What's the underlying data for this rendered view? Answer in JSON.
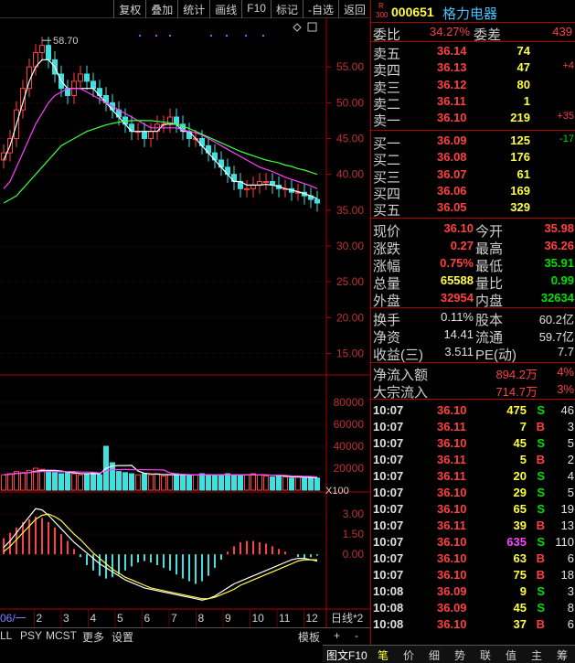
{
  "toolbar": [
    "复权",
    "叠加",
    "统计",
    "画线",
    "F10",
    "标记",
    "-自选",
    "返回"
  ],
  "stock": {
    "code": "000651",
    "name": "格力电器",
    "prefix_top": "R",
    "prefix_bottom": "300"
  },
  "weibi": {
    "label": "委比",
    "value": "34.27%",
    "diff_label": "委差",
    "diff": "439"
  },
  "sell": [
    {
      "label": "卖五",
      "price": "36.14",
      "vol": "74",
      "chg": ""
    },
    {
      "label": "卖四",
      "price": "36.13",
      "vol": "47",
      "chg": "+4"
    },
    {
      "label": "卖三",
      "price": "36.12",
      "vol": "80",
      "chg": ""
    },
    {
      "label": "卖二",
      "price": "36.11",
      "vol": "1",
      "chg": ""
    },
    {
      "label": "卖一",
      "price": "36.10",
      "vol": "219",
      "chg": "+35"
    }
  ],
  "buy": [
    {
      "label": "买一",
      "price": "36.09",
      "vol": "125",
      "chg": "-17"
    },
    {
      "label": "买二",
      "price": "36.08",
      "vol": "176",
      "chg": ""
    },
    {
      "label": "买三",
      "price": "36.07",
      "vol": "61",
      "chg": ""
    },
    {
      "label": "买四",
      "price": "36.06",
      "vol": "169",
      "chg": ""
    },
    {
      "label": "买五",
      "price": "36.05",
      "vol": "329",
      "chg": ""
    }
  ],
  "quote": [
    {
      "l1": "现价",
      "v1": "36.10",
      "l2": "今开",
      "v2": "35.98"
    },
    {
      "l1": "涨跌",
      "v1": "0.27",
      "l2": "最高",
      "v2": "36.26"
    },
    {
      "l1": "涨幅",
      "v1": "0.75%",
      "l2": "最低",
      "v2": "35.91"
    },
    {
      "l1": "总量",
      "v1": "65588",
      "l2": "量比",
      "v2": "0.99"
    },
    {
      "l1": "外盘",
      "v1": "32954",
      "l2": "内盘",
      "v2": "32634"
    }
  ],
  "fund": [
    {
      "l1": "换手",
      "v1": "0.11%",
      "l2": "股本",
      "v2": "60.2亿"
    },
    {
      "l1": "净资",
      "v1": "14.41",
      "l2": "流通",
      "v2": "59.7亿"
    },
    {
      "l1": "收益(三)",
      "v1": "3.511",
      "l2": "PE(动)",
      "v2": "7.7"
    }
  ],
  "flow": [
    {
      "label": "净流入额",
      "value": "894.2万",
      "pct": "4%"
    },
    {
      "label": "大宗流入",
      "value": "714.7万",
      "pct": "3%"
    }
  ],
  "ticks": [
    {
      "t": "10:07",
      "p": "36.10",
      "v": "475",
      "bs": "S",
      "n": "46"
    },
    {
      "t": "10:07",
      "p": "36.11",
      "v": "7",
      "bs": "B",
      "n": "3"
    },
    {
      "t": "10:07",
      "p": "36.10",
      "v": "45",
      "bs": "S",
      "n": "5"
    },
    {
      "t": "10:07",
      "p": "36.11",
      "v": "5",
      "bs": "B",
      "n": "2"
    },
    {
      "t": "10:07",
      "p": "36.11",
      "v": "20",
      "bs": "S",
      "n": "4"
    },
    {
      "t": "10:07",
      "p": "36.10",
      "v": "29",
      "bs": "S",
      "n": "5"
    },
    {
      "t": "10:07",
      "p": "36.10",
      "v": "65",
      "bs": "S",
      "n": "19"
    },
    {
      "t": "10:07",
      "p": "36.11",
      "v": "39",
      "bs": "B",
      "n": "13"
    },
    {
      "t": "10:07",
      "p": "36.10",
      "v": "635",
      "bs": "S",
      "n": "110"
    },
    {
      "t": "10:07",
      "p": "36.10",
      "v": "63",
      "bs": "B",
      "n": "6"
    },
    {
      "t": "10:07",
      "p": "36.10",
      "v": "75",
      "bs": "B",
      "n": "18"
    },
    {
      "t": "10:08",
      "p": "36.09",
      "v": "9",
      "bs": "S",
      "n": "3"
    },
    {
      "t": "10:08",
      "p": "36.09",
      "v": "45",
      "bs": "S",
      "n": "8"
    },
    {
      "t": "10:08",
      "p": "36.10",
      "v": "37",
      "bs": "B",
      "n": "6"
    }
  ],
  "bottom_tabs": [
    "LL",
    "PSY",
    "MCST",
    "更多",
    "设置"
  ],
  "bottom_right": {
    "template": "模板",
    "plus": "+",
    "minus": "-"
  },
  "right_tabs": [
    "图文F10",
    "笔",
    "价",
    "细",
    "势",
    "联",
    "值",
    "主",
    "筹"
  ],
  "chart_data": {
    "type": "candlestick",
    "price_axis": [
      "55.00",
      "50.00",
      "45.00",
      "40.00",
      "35.00",
      "30.00",
      "25.00",
      "20.00",
      "15.00"
    ],
    "price_ticks": [
      55,
      50,
      45,
      40,
      35,
      30,
      25,
      20,
      15
    ],
    "high_label": "58.70",
    "volume_axis": [
      "80000",
      "60000",
      "40000",
      "20000"
    ],
    "volume_ticks": [
      80000,
      60000,
      40000,
      20000
    ],
    "volume_unit": "X100",
    "macd_axis": [
      "3.00",
      "1.50",
      "0.00"
    ],
    "macd_ticks": [
      3,
      1.5,
      0
    ],
    "months": [
      "06/一",
      "2",
      "3",
      "4",
      "5",
      "6",
      "7",
      "8",
      "9",
      "10",
      "11",
      "12"
    ],
    "x_period": "日线*2",
    "close": [
      43,
      45,
      49,
      52,
      55,
      57,
      58,
      56,
      54,
      52,
      51,
      53,
      54,
      53,
      52,
      51,
      50,
      49,
      48,
      47,
      46,
      46,
      45,
      46,
      47,
      47,
      48,
      47,
      46,
      45,
      45,
      44,
      43,
      42,
      41,
      40,
      39,
      38,
      38,
      38.5,
      39,
      39,
      38.5,
      38,
      38,
      37.5,
      37.5,
      37,
      36.5,
      36
    ],
    "ma5": [
      42,
      44,
      47,
      50,
      53,
      55,
      56,
      56,
      55,
      53,
      52,
      52,
      52,
      52,
      52,
      51,
      50,
      49,
      48,
      47,
      46,
      46,
      46,
      46,
      46,
      47,
      47,
      47,
      46,
      46,
      45,
      44,
      43,
      42,
      41,
      40,
      39,
      39,
      38.5,
      38.5,
      38.5,
      38.6,
      38.5,
      38.3,
      38,
      37.8,
      37.6,
      37.3,
      37,
      36.6
    ],
    "ma20": [
      38,
      39,
      41,
      43,
      45,
      47,
      48.5,
      50,
      51,
      51.5,
      52,
      52,
      52,
      51.5,
      51,
      50.5,
      50,
      49.5,
      49,
      48.5,
      48,
      47.5,
      47,
      46.5,
      46.5,
      46.5,
      46.5,
      46.5,
      46.2,
      46,
      45.8,
      45.5,
      45,
      44.5,
      44,
      43.5,
      43,
      42.5,
      42,
      41.5,
      41,
      40.7,
      40.4,
      40,
      39.6,
      39.3,
      39,
      38.7,
      38.4,
      38
    ],
    "ma60": [
      36,
      36.5,
      37,
      38,
      39,
      40,
      41,
      42,
      43,
      44,
      44.5,
      45,
      45.5,
      46,
      46.3,
      46.6,
      46.9,
      47.1,
      47.3,
      47.4,
      47.5,
      47.5,
      47.5,
      47.5,
      47.4,
      47.3,
      47.2,
      47,
      46.7,
      46.4,
      46,
      45.6,
      45.2,
      44.8,
      44.4,
      44,
      43.6,
      43.2,
      42.9,
      42.6,
      42.3,
      42,
      41.8,
      41.6,
      41.3,
      41.1,
      40.8,
      40.6,
      40.3,
      40
    ],
    "volume": [
      14000,
      15000,
      17000,
      16000,
      18000,
      20000,
      19000,
      17000,
      16000,
      15000,
      16000,
      15000,
      14000,
      15000,
      16000,
      14000,
      40000,
      25000,
      17000,
      16000,
      15000,
      14000,
      15000,
      14000,
      15000,
      13000,
      14000,
      15000,
      14000,
      13000,
      14000,
      15000,
      14000,
      13000,
      14000,
      15000,
      14000,
      13000,
      14000,
      15000,
      14000,
      13000,
      12000,
      13000,
      12000,
      11000,
      12000,
      11000,
      12000,
      11000
    ],
    "macd": [
      1.2,
      1.6,
      2.0,
      2.4,
      2.6,
      2.8,
      2.7,
      2.4,
      2.0,
      1.5,
      1.0,
      0.4,
      -0.2,
      -0.8,
      -1.2,
      -1.6,
      -1.8,
      -1.7,
      -1.5,
      -1.2,
      -0.9,
      -0.6,
      -0.5,
      -0.6,
      -0.8,
      -1.0,
      -1.2,
      -1.5,
      -1.8,
      -2.0,
      -2.2,
      -2.0,
      -1.6,
      -1.0,
      -0.4,
      0.2,
      0.6,
      0.9,
      1.0,
      1.0,
      0.9,
      0.8,
      0.6,
      0.4,
      0.2,
      0.0,
      -0.2,
      -0.3,
      -0.2,
      -0.1
    ],
    "dif": [
      0.5,
      1.0,
      1.6,
      2.2,
      2.8,
      3.4,
      3.3,
      2.9,
      2.4,
      1.9,
      1.4,
      0.9,
      0.5,
      0.1,
      -0.3,
      -0.7,
      -1.0,
      -1.3,
      -1.6,
      -1.9,
      -2.1,
      -2.3,
      -2.5,
      -2.6,
      -2.7,
      -2.8,
      -2.9,
      -3.0,
      -3.1,
      -3.2,
      -3.3,
      -3.4,
      -3.3,
      -3.1,
      -2.8,
      -2.5,
      -2.2,
      -2.0,
      -1.8,
      -1.6,
      -1.4,
      -1.2,
      -1.0,
      -0.8,
      -0.6,
      -0.4,
      -0.3,
      -0.3,
      -0.4,
      -0.5
    ],
    "dea": [
      0.2,
      0.6,
      1.1,
      1.6,
      2.1,
      2.6,
      2.9,
      3.0,
      2.8,
      2.5,
      2.0,
      1.5,
      1.1,
      0.6,
      0.1,
      -0.3,
      -0.7,
      -1.1,
      -1.4,
      -1.7,
      -1.9,
      -2.1,
      -2.3,
      -2.5,
      -2.6,
      -2.7,
      -2.8,
      -2.9,
      -3.0,
      -3.1,
      -3.2,
      -3.3,
      -3.3,
      -3.2,
      -3.0,
      -2.8,
      -2.6,
      -2.3,
      -2.1,
      -1.9,
      -1.7,
      -1.5,
      -1.3,
      -1.1,
      -0.9,
      -0.7,
      -0.5,
      -0.4,
      -0.4,
      -0.4
    ]
  }
}
